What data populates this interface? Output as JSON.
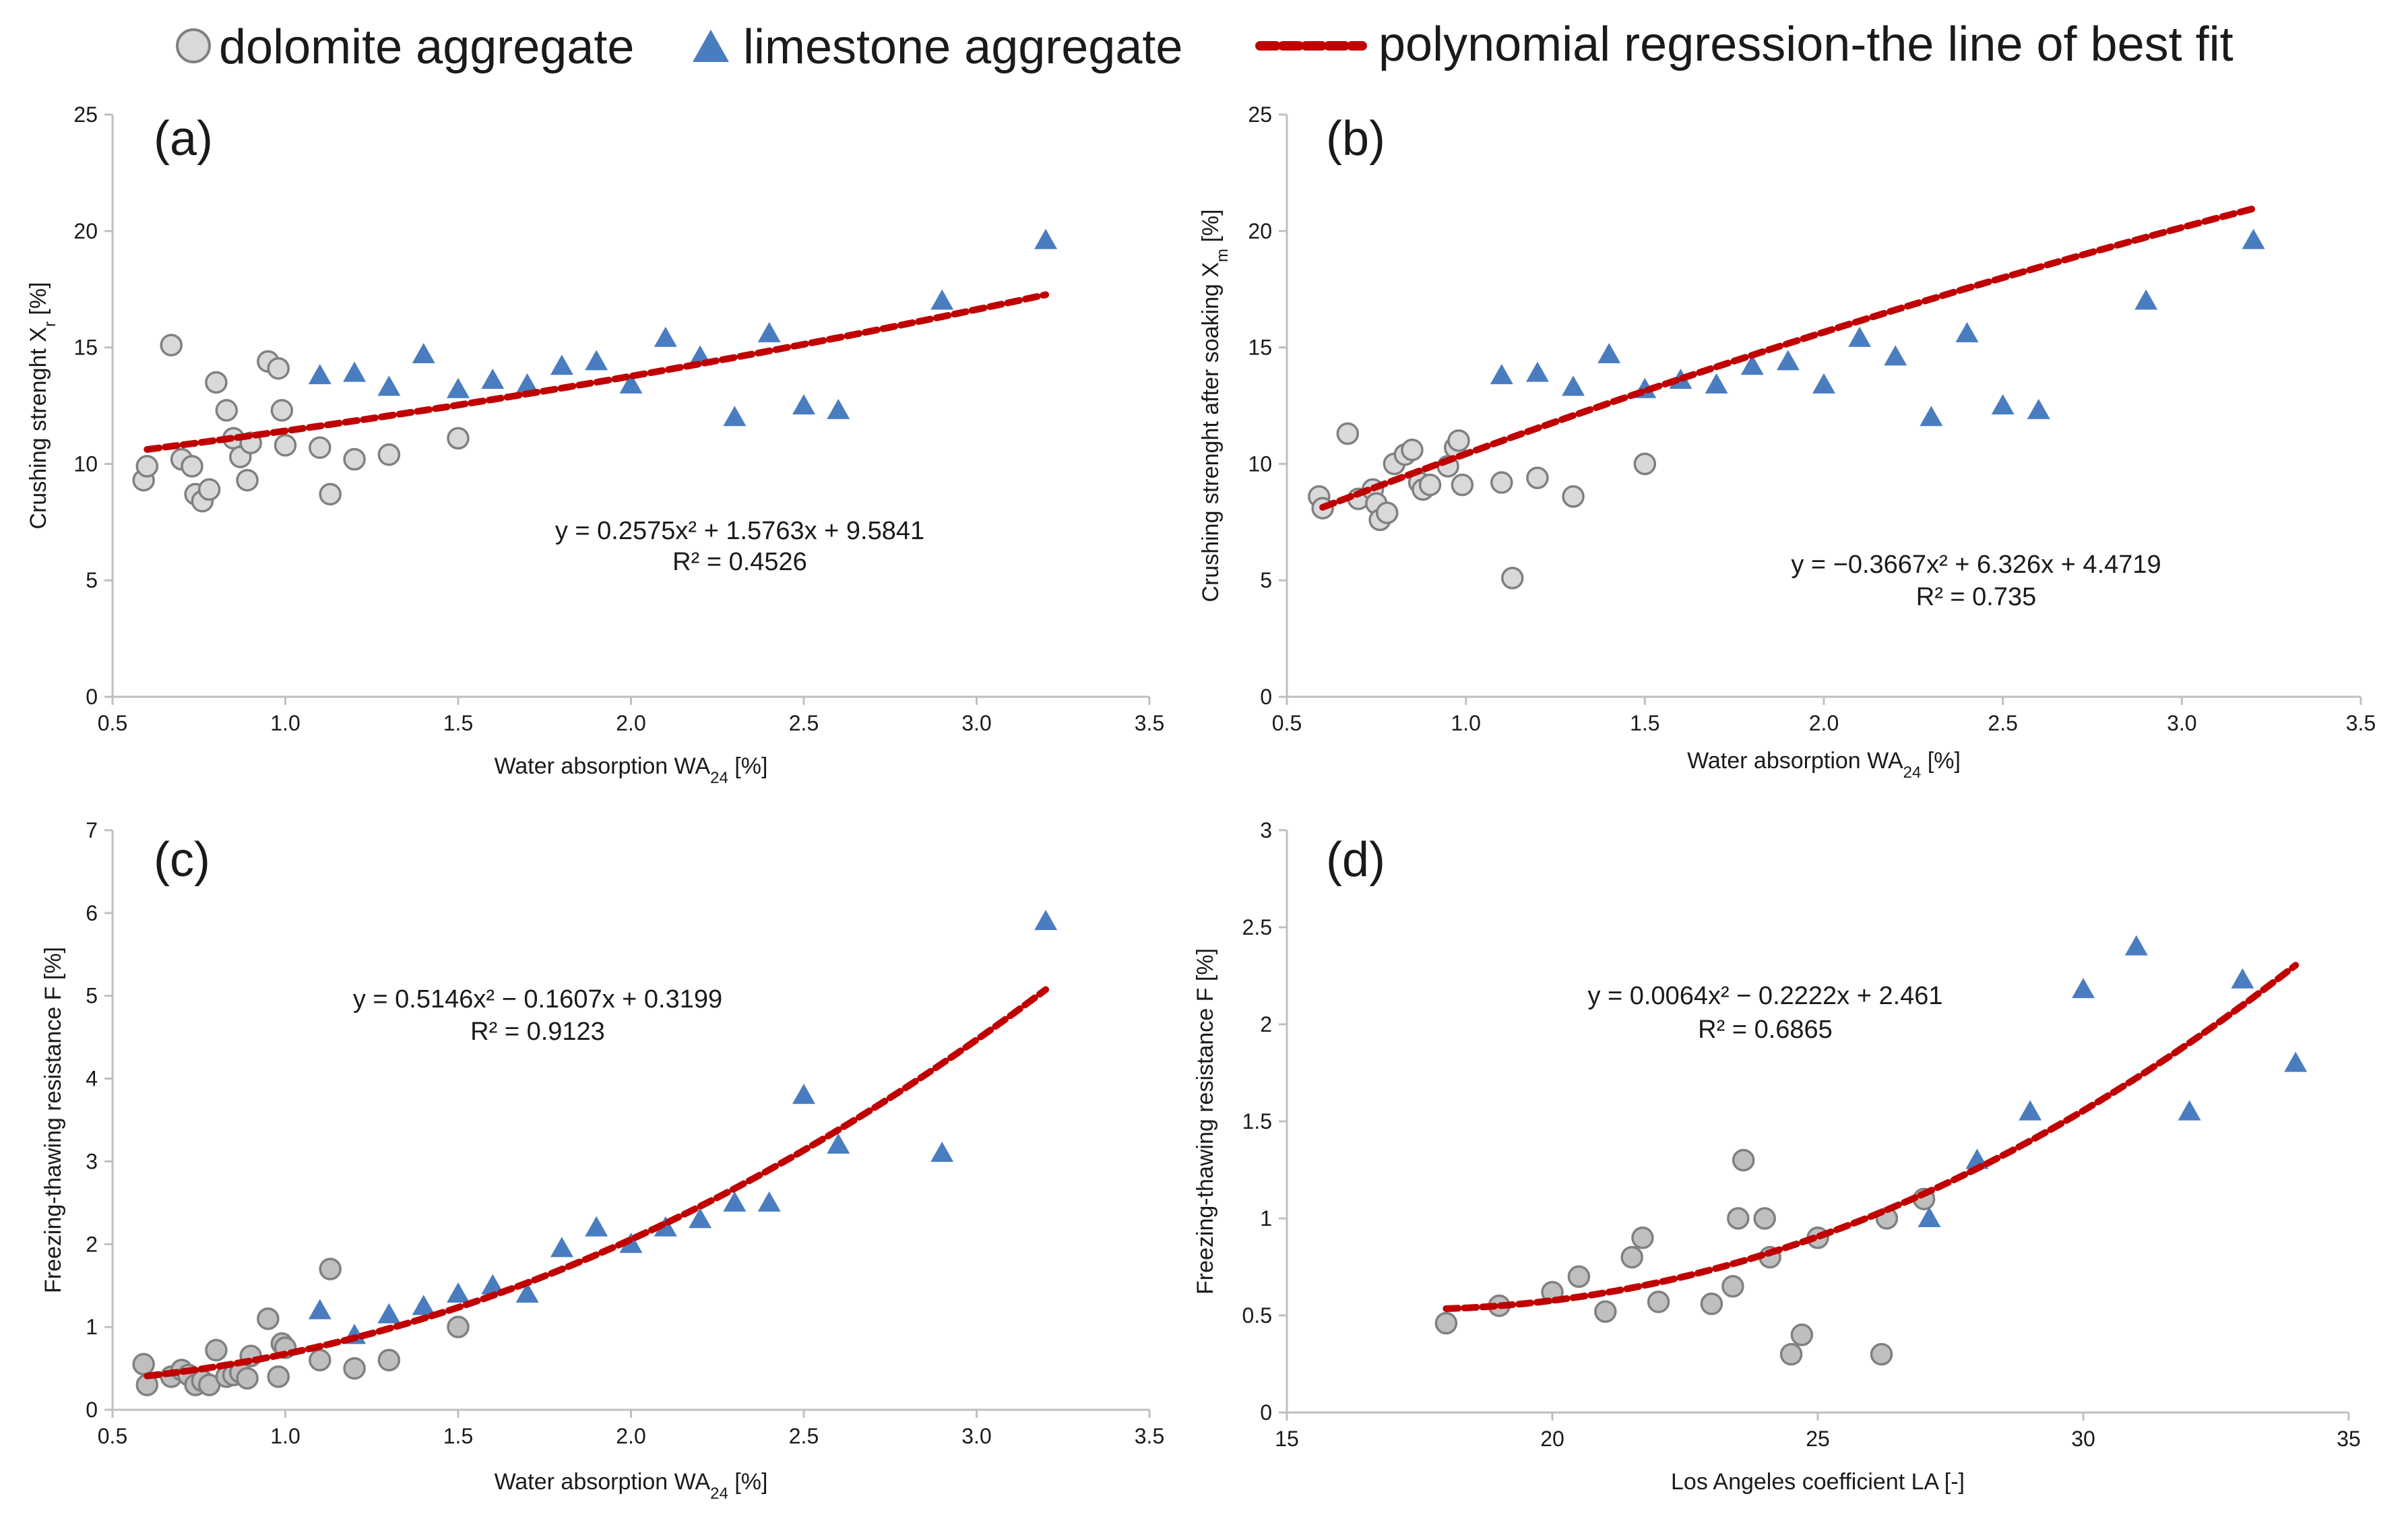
{
  "legend": {
    "dolomite": "dolomite aggregate",
    "limestone": "limestone aggregate",
    "fit": "polynomial regression-the line of best fit"
  },
  "colors": {
    "dolomite_fill": "#d9d9d9",
    "dolomite_fill_dark": "#bfbfbf",
    "dolomite_stroke": "#808080",
    "limestone": "#4a7cc0",
    "fit": "#c00000",
    "axis": "#bfbfbf"
  },
  "chart_data": [
    {
      "id": "a",
      "type": "scatter",
      "panel_label": "(a)",
      "xlabel": "Water absorption WA",
      "xlabel_sub": "24",
      "xlabel_suffix": " [%]",
      "ylabel": "Crushing strenght  X",
      "ylabel_sub": "r",
      "ylabel_suffix": " [%]",
      "xlim": [
        0.5,
        3.5
      ],
      "ylim": [
        0,
        25
      ],
      "xticks": [
        "0.5",
        "1.0",
        "1.5",
        "2.0",
        "2.5",
        "3.0",
        "3.5"
      ],
      "yticks": [
        "0",
        "5",
        "10",
        "15",
        "20",
        "25"
      ],
      "equation": "y = 0.2575x² + 1.5763x + 9.5841",
      "r2": "R² = 0.4526",
      "fit_coeffs": [
        0.2575,
        1.5763,
        9.5841
      ],
      "fit_range": [
        0.6,
        3.2
      ],
      "dolomite": [
        [
          0.59,
          9.3
        ],
        [
          0.6,
          9.9
        ],
        [
          0.67,
          15.1
        ],
        [
          0.7,
          10.2
        ],
        [
          0.73,
          9.9
        ],
        [
          0.74,
          8.7
        ],
        [
          0.76,
          8.4
        ],
        [
          0.78,
          8.9
        ],
        [
          0.8,
          13.5
        ],
        [
          0.83,
          12.3
        ],
        [
          0.85,
          11.1
        ],
        [
          0.87,
          10.3
        ],
        [
          0.89,
          9.3
        ],
        [
          0.9,
          10.9
        ],
        [
          0.95,
          14.4
        ],
        [
          0.98,
          14.1
        ],
        [
          0.99,
          12.3
        ],
        [
          1.0,
          10.8
        ],
        [
          1.1,
          10.7
        ],
        [
          1.13,
          8.7
        ],
        [
          1.2,
          10.2
        ],
        [
          1.3,
          10.4
        ],
        [
          1.5,
          11.1
        ]
      ],
      "limestone": [
        [
          1.1,
          13.8
        ],
        [
          1.2,
          13.9
        ],
        [
          1.3,
          13.3
        ],
        [
          1.4,
          14.7
        ],
        [
          1.5,
          13.2
        ],
        [
          1.6,
          13.6
        ],
        [
          1.7,
          13.4
        ],
        [
          1.8,
          14.2
        ],
        [
          1.9,
          14.4
        ],
        [
          2.0,
          13.4
        ],
        [
          2.1,
          15.4
        ],
        [
          2.2,
          14.6
        ],
        [
          2.3,
          12.0
        ],
        [
          2.4,
          15.6
        ],
        [
          2.5,
          12.5
        ],
        [
          2.6,
          12.3
        ],
        [
          2.9,
          17.0
        ],
        [
          3.2,
          19.6
        ]
      ]
    },
    {
      "id": "b",
      "type": "scatter",
      "panel_label": "(b)",
      "xlabel": "Water absorption WA",
      "xlabel_sub": "24",
      "xlabel_suffix": " [%]",
      "ylabel": "Crushing strenght after soaking X",
      "ylabel_sub": "m",
      "ylabel_suffix": " [%]",
      "xlim": [
        0.5,
        3.5
      ],
      "ylim": [
        0,
        25
      ],
      "xticks": [
        "0.5",
        "1.0",
        "1.5",
        "2.0",
        "2.5",
        "3.0",
        "3.5"
      ],
      "yticks": [
        "0",
        "5",
        "10",
        "15",
        "20",
        "25"
      ],
      "equation": "y = −0.3667x² + 6.326x + 4.4719",
      "r2": "R² = 0.735",
      "fit_coeffs": [
        -0.3667,
        6.326,
        4.4719
      ],
      "fit_range": [
        0.6,
        3.2
      ],
      "dolomite": [
        [
          0.59,
          8.6
        ],
        [
          0.6,
          8.1
        ],
        [
          0.67,
          11.3
        ],
        [
          0.7,
          8.5
        ],
        [
          0.74,
          8.9
        ],
        [
          0.75,
          8.3
        ],
        [
          0.76,
          7.6
        ],
        [
          0.78,
          7.9
        ],
        [
          0.8,
          10.0
        ],
        [
          0.83,
          10.4
        ],
        [
          0.85,
          10.6
        ],
        [
          0.87,
          9.2
        ],
        [
          0.88,
          8.9
        ],
        [
          0.9,
          9.1
        ],
        [
          0.95,
          9.9
        ],
        [
          0.97,
          10.7
        ],
        [
          0.98,
          11.0
        ],
        [
          0.99,
          9.1
        ],
        [
          1.1,
          9.2
        ],
        [
          1.13,
          5.1
        ],
        [
          1.2,
          9.4
        ],
        [
          1.3,
          8.6
        ],
        [
          1.5,
          10.0
        ]
      ],
      "limestone": [
        [
          1.1,
          13.8
        ],
        [
          1.2,
          13.9
        ],
        [
          1.3,
          13.3
        ],
        [
          1.4,
          14.7
        ],
        [
          1.5,
          13.2
        ],
        [
          1.6,
          13.6
        ],
        [
          1.7,
          13.4
        ],
        [
          1.8,
          14.2
        ],
        [
          1.9,
          14.4
        ],
        [
          2.0,
          13.4
        ],
        [
          2.1,
          15.4
        ],
        [
          2.2,
          14.6
        ],
        [
          2.3,
          12.0
        ],
        [
          2.4,
          15.6
        ],
        [
          2.5,
          12.5
        ],
        [
          2.6,
          12.3
        ],
        [
          2.9,
          17.0
        ],
        [
          3.2,
          19.6
        ]
      ]
    },
    {
      "id": "c",
      "type": "scatter",
      "panel_label": "(c)",
      "xlabel": "Water absorption WA",
      "xlabel_sub": "24",
      "xlabel_suffix": " [%]",
      "ylabel": "Freezing-thawing resistance F [%]",
      "ylabel_sub": "",
      "ylabel_suffix": "",
      "xlim": [
        0.5,
        3.5
      ],
      "ylim": [
        0,
        7
      ],
      "xticks": [
        "0.5",
        "1.0",
        "1.5",
        "2.0",
        "2.5",
        "3.0",
        "3.5"
      ],
      "yticks": [
        "0",
        "1",
        "2",
        "3",
        "4",
        "5",
        "6",
        "7"
      ],
      "equation": "y = 0.5146x² − 0.1607x + 0.3199",
      "r2": "R² = 0.9123",
      "fit_coeffs": [
        0.5146,
        -0.1607,
        0.3199
      ],
      "fit_range": [
        0.6,
        3.2
      ],
      "dolomite": [
        [
          0.59,
          0.55
        ],
        [
          0.6,
          0.3
        ],
        [
          0.67,
          0.4
        ],
        [
          0.7,
          0.48
        ],
        [
          0.72,
          0.42
        ],
        [
          0.74,
          0.3
        ],
        [
          0.76,
          0.35
        ],
        [
          0.78,
          0.3
        ],
        [
          0.8,
          0.72
        ],
        [
          0.83,
          0.4
        ],
        [
          0.85,
          0.42
        ],
        [
          0.87,
          0.45
        ],
        [
          0.89,
          0.38
        ],
        [
          0.9,
          0.65
        ],
        [
          0.95,
          1.1
        ],
        [
          0.98,
          0.4
        ],
        [
          0.99,
          0.8
        ],
        [
          1.0,
          0.75
        ],
        [
          1.1,
          0.6
        ],
        [
          1.13,
          1.7
        ],
        [
          1.2,
          0.5
        ],
        [
          1.3,
          0.6
        ],
        [
          1.5,
          1.0
        ]
      ],
      "limestone": [
        [
          1.1,
          1.2
        ],
        [
          1.2,
          0.9
        ],
        [
          1.3,
          1.15
        ],
        [
          1.4,
          1.25
        ],
        [
          1.5,
          1.4
        ],
        [
          1.6,
          1.5
        ],
        [
          1.7,
          1.4
        ],
        [
          1.8,
          1.95
        ],
        [
          1.9,
          2.2
        ],
        [
          2.0,
          2.0
        ],
        [
          2.1,
          2.2
        ],
        [
          2.2,
          2.3
        ],
        [
          2.3,
          2.5
        ],
        [
          2.4,
          2.5
        ],
        [
          2.5,
          3.8
        ],
        [
          2.6,
          3.2
        ],
        [
          2.9,
          3.1
        ],
        [
          3.2,
          5.9
        ]
      ]
    },
    {
      "id": "d",
      "type": "scatter",
      "panel_label": "(d)",
      "xlabel": "Los Angeles coefficient LA [-]",
      "xlabel_sub": "",
      "xlabel_suffix": "",
      "ylabel": "Freezing-thawing resistance F [%]",
      "ylabel_sub": "",
      "ylabel_suffix": "",
      "xlim": [
        15,
        35
      ],
      "ylim": [
        0,
        3
      ],
      "xticks": [
        "15",
        "20",
        "25",
        "30",
        "35"
      ],
      "yticks": [
        "0",
        "0.5",
        "1",
        "1.5",
        "2",
        "2.5",
        "3"
      ],
      "equation": "y = 0.0064x² − 0.2222x + 2.461",
      "r2": "R² = 0.6865",
      "fit_coeffs": [
        0.0064,
        -0.2222,
        2.461
      ],
      "fit_range": [
        18,
        34
      ],
      "dolomite": [
        [
          18,
          0.46
        ],
        [
          19,
          0.55
        ],
        [
          20,
          0.62
        ],
        [
          20.5,
          0.7
        ],
        [
          21,
          0.52
        ],
        [
          21.5,
          0.8
        ],
        [
          21.7,
          0.9
        ],
        [
          22,
          0.57
        ],
        [
          23,
          0.56
        ],
        [
          23.4,
          0.65
        ],
        [
          23.5,
          1.0
        ],
        [
          23.6,
          1.3
        ],
        [
          24,
          1.0
        ],
        [
          24.1,
          0.8
        ],
        [
          24.5,
          0.3
        ],
        [
          24.7,
          0.4
        ],
        [
          25,
          0.9
        ],
        [
          26.2,
          0.3
        ],
        [
          26.3,
          1.0
        ],
        [
          27,
          1.1
        ]
      ],
      "limestone": [
        [
          27.1,
          1.0
        ],
        [
          28,
          1.3
        ],
        [
          29,
          1.55
        ],
        [
          30,
          2.18
        ],
        [
          31,
          2.4
        ],
        [
          32,
          1.55
        ],
        [
          33,
          2.23
        ],
        [
          34,
          1.8
        ]
      ]
    }
  ]
}
